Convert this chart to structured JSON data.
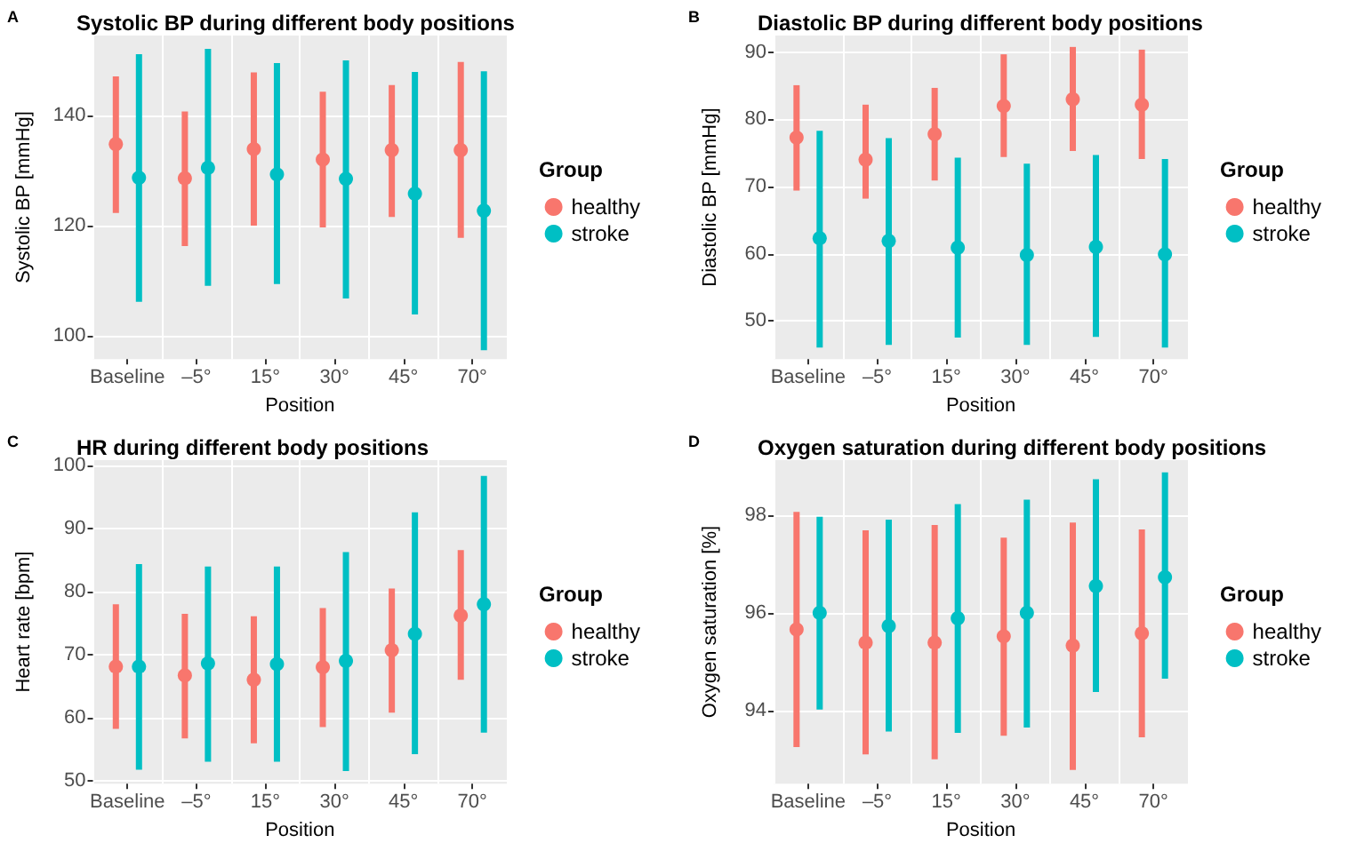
{
  "chart_data": [
    {
      "type": "scatter",
      "title": "Systolic BP during different body positions",
      "annotations": [
        "A"
      ],
      "xlabel": "Position",
      "ylabel": "Systolic BP [mmHg]",
      "legend_title": "Group",
      "legend": "right",
      "grid": true,
      "marker": "circle",
      "categories": [
        "Baseline",
        "–5°",
        "15°",
        "30°",
        "45°",
        "70°"
      ],
      "ylim": [
        95.8,
        154.5
      ],
      "yticks": [
        100,
        120,
        140
      ],
      "series": [
        {
          "name": "healthy",
          "color": "#f8766d",
          "values": [
            134.8,
            128.6,
            133.9,
            132,
            133.7,
            133.7
          ],
          "errors": [
            [
              122.3,
              147.1
            ],
            [
              116.3,
              140.7
            ],
            [
              120,
              147.8
            ],
            [
              119.7,
              144.3
            ],
            [
              121.6,
              145.5
            ],
            [
              117.8,
              149.7
            ]
          ]
        },
        {
          "name": "stroke",
          "color": "#00bfc4",
          "values": [
            128.7,
            130.5,
            129.3,
            128.5,
            125.8,
            122.7
          ],
          "errors": [
            [
              106.2,
              151.1
            ],
            [
              109.1,
              152.1
            ],
            [
              109.4,
              149.5
            ],
            [
              106.8,
              150
            ],
            [
              103.9,
              147.9
            ],
            [
              97.4,
              148
            ]
          ]
        }
      ]
    },
    {
      "type": "scatter",
      "title": "Diastolic BP during different body positions",
      "annotations": [
        "B"
      ],
      "xlabel": "Position",
      "ylabel": "Diastolic BP [mmHg]",
      "legend_title": "Group",
      "legend": "right",
      "grid": true,
      "marker": "circle",
      "categories": [
        "Baseline",
        "–5°",
        "15°",
        "30°",
        "45°",
        "70°"
      ],
      "ylim": [
        44.3,
        92.5
      ],
      "yticks": [
        50,
        60,
        70,
        80,
        90
      ],
      "series": [
        {
          "name": "healthy",
          "color": "#f8766d",
          "values": [
            77.3,
            74,
            77.8,
            82,
            83,
            82.2
          ],
          "errors": [
            [
              69.4,
              85.1
            ],
            [
              68.2,
              82.2
            ],
            [
              70.9,
              84.7
            ],
            [
              74.4,
              89.7
            ],
            [
              75.3,
              90.8
            ],
            [
              74.1,
              90.4
            ]
          ]
        },
        {
          "name": "stroke",
          "color": "#00bfc4",
          "values": [
            62.3,
            61.9,
            60.9,
            59.8,
            61,
            59.9
          ],
          "errors": [
            [
              46,
              78.3
            ],
            [
              46.4,
              77.2
            ],
            [
              47.5,
              74.3
            ],
            [
              46.4,
              73.4
            ],
            [
              47.6,
              74.7
            ],
            [
              46,
              74.1
            ]
          ]
        }
      ]
    },
    {
      "type": "scatter",
      "title": "HR during different body positions",
      "annotations": [
        "C"
      ],
      "xlabel": "Position",
      "ylabel": "Heart rate [bpm]",
      "legend_title": "Group",
      "legend": "right",
      "grid": true,
      "marker": "circle",
      "categories": [
        "Baseline",
        "–5°",
        "15°",
        "30°",
        "45°",
        "70°"
      ],
      "ylim": [
        49.5,
        100.9
      ],
      "yticks": [
        50,
        60,
        70,
        80,
        90,
        100
      ],
      "series": [
        {
          "name": "healthy",
          "color": "#f8766d",
          "values": [
            68.1,
            66.7,
            66,
            68,
            70.7,
            76.2
          ],
          "errors": [
            [
              58.2,
              78
            ],
            [
              56.7,
              76.5
            ],
            [
              55.9,
              76.1
            ],
            [
              58.5,
              77.4
            ],
            [
              60.8,
              80.5
            ],
            [
              66,
              86.6
            ]
          ]
        },
        {
          "name": "stroke",
          "color": "#00bfc4",
          "values": [
            68.1,
            68.6,
            68.5,
            69,
            73.3,
            78
          ],
          "errors": [
            [
              51.7,
              84.4
            ],
            [
              53,
              84
            ],
            [
              53,
              84
            ],
            [
              51.5,
              86.3
            ],
            [
              54.2,
              92.6
            ],
            [
              57.6,
              98.4
            ]
          ]
        }
      ]
    },
    {
      "type": "scatter",
      "title": "Oxygen saturation during different body positions",
      "annotations": [
        "D"
      ],
      "xlabel": "Position",
      "ylabel": "Oxygen saturation [%]",
      "legend_title": "Group",
      "legend": "right",
      "grid": true,
      "marker": "circle",
      "categories": [
        "Baseline",
        "–5°",
        "15°",
        "30°",
        "45°",
        "70°"
      ],
      "ylim": [
        92.5,
        99.13
      ],
      "yticks": [
        94,
        96,
        98
      ],
      "series": [
        {
          "name": "healthy",
          "color": "#f8766d",
          "values": [
            95.66,
            95.39,
            95.39,
            95.52,
            95.33,
            95.58
          ],
          "errors": [
            [
              93.25,
              98.07
            ],
            [
              93.1,
              97.69
            ],
            [
              93,
              97.8
            ],
            [
              93.48,
              97.54
            ],
            [
              92.78,
              97.85
            ],
            [
              93.45,
              97.71
            ]
          ]
        },
        {
          "name": "stroke",
          "color": "#00bfc4",
          "values": [
            96,
            95.73,
            95.89,
            96,
            96.55,
            96.73
          ],
          "errors": [
            [
              94.02,
              97.97
            ],
            [
              93.57,
              97.91
            ],
            [
              93.54,
              98.23
            ],
            [
              93.65,
              98.32
            ],
            [
              94.38,
              98.74
            ],
            [
              94.65,
              98.88
            ]
          ]
        }
      ]
    }
  ]
}
